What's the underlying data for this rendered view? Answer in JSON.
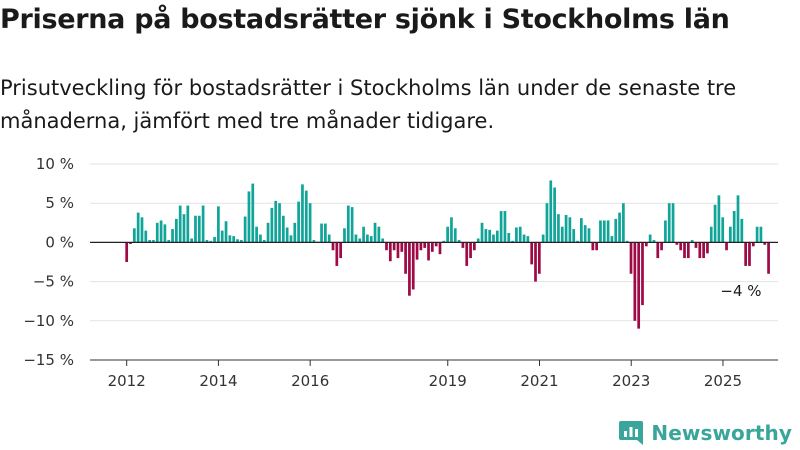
{
  "title": "Priserna på bostadsrätter sjönk i Stockholms län",
  "subtitle": "Prisutveckling för bostadsrätter i Stockholms län under de senaste tre månaderna, jämfört med tre månader tidigare.",
  "brand": {
    "name": "Newsworthy",
    "icon": "newsworthy-logo-icon",
    "color": "#3aa59b"
  },
  "chart_data": {
    "type": "bar",
    "title": "",
    "xlabel": "",
    "ylabel": "",
    "ylim": [
      -15,
      10
    ],
    "xlim": [
      2011.2,
      2026.2
    ],
    "grid": true,
    "legend": "none",
    "y_ticks": [
      {
        "value": 10,
        "label": "10 %"
      },
      {
        "value": 5,
        "label": "5 %"
      },
      {
        "value": 0,
        "label": "0 %"
      },
      {
        "value": -5,
        "label": "−5 %"
      },
      {
        "value": -10,
        "label": "−10 %"
      },
      {
        "value": -15,
        "label": "−15 %"
      }
    ],
    "x_ticks": [
      {
        "value": 2012,
        "label": "2012"
      },
      {
        "value": 2014,
        "label": "2014"
      },
      {
        "value": 2016,
        "label": "2016"
      },
      {
        "value": 2019,
        "label": "2019"
      },
      {
        "value": 2021,
        "label": "2021"
      },
      {
        "value": 2023,
        "label": "2023"
      },
      {
        "value": 2025,
        "label": "2025"
      }
    ],
    "colors": {
      "positive": "#11a59a",
      "negative": "#9e0a46",
      "zero_line": "#222222",
      "grid": "#e3e3e3"
    },
    "annotation": {
      "text": "−4 %",
      "x": 2025.48,
      "y": -4
    },
    "series": [
      {
        "x_start": 2012.0,
        "step": 0.0833,
        "values": [
          -2.5,
          -0.2,
          1.8,
          3.8,
          3.2,
          1.5,
          0.3,
          0.3,
          2.5,
          2.8,
          2.3,
          0.3,
          1.7,
          3.0,
          4.7,
          3.6,
          4.7,
          0.5,
          3.4,
          3.4,
          4.7,
          0.3,
          0.2,
          0.7,
          4.6,
          1.5,
          2.7,
          0.9,
          0.8,
          0.4,
          0.3,
          3.3,
          6.5,
          7.5,
          2.0,
          1.0,
          0.3,
          2.5,
          4.4,
          5.3,
          5.0,
          3.4,
          1.9,
          0.9,
          2.5,
          5.2,
          7.4,
          6.6,
          5.0,
          0.3,
          0.1,
          2.4,
          2.4,
          1.0,
          -1.0,
          -3.0,
          -2.0,
          1.8,
          4.7,
          4.5,
          1.0,
          0.5,
          2.0,
          1.0,
          0.8,
          2.5,
          2.0,
          0.5,
          -1.0,
          -2.4,
          -1.0,
          -2.0,
          -1.2,
          -4.0,
          -6.8,
          -6.0,
          -2.2,
          -1.0,
          -0.7,
          -2.3,
          -1.2,
          -0.5,
          -1.5,
          0.2,
          2.0,
          3.2,
          1.8,
          0.3,
          -0.7,
          -3.0,
          -2.0,
          -1.0,
          0.5,
          2.5,
          1.7,
          1.6,
          1.0,
          1.5,
          4.0,
          4.0,
          1.2,
          0.2,
          1.9,
          2.0,
          1.0,
          0.8,
          -2.8,
          -5.0,
          -4.0,
          1.0,
          5.0,
          7.9,
          7.0,
          3.6,
          2.0,
          3.5,
          3.2,
          1.7,
          0.2,
          3.1,
          2.2,
          1.8,
          -1.0,
          -1.0,
          2.8,
          2.8,
          2.8,
          0.8,
          3.0,
          3.8,
          5.0,
          0.2,
          -4.0,
          -10.0,
          -11.0,
          -8.0,
          -0.5,
          1.0,
          0.3,
          -2.0,
          -1.0,
          2.8,
          5.0,
          5.0,
          -0.3,
          -1.0,
          -2.0,
          -2.0,
          0.3,
          -0.7,
          -2.0,
          -2.0,
          -1.4,
          2.0,
          4.8,
          6.0,
          3.2,
          -1.0,
          2.0,
          4.0,
          6.0,
          3.0,
          -3.0,
          -3.0,
          -0.5,
          2.0,
          2.0,
          -0.3,
          -4.0
        ]
      }
    ]
  }
}
